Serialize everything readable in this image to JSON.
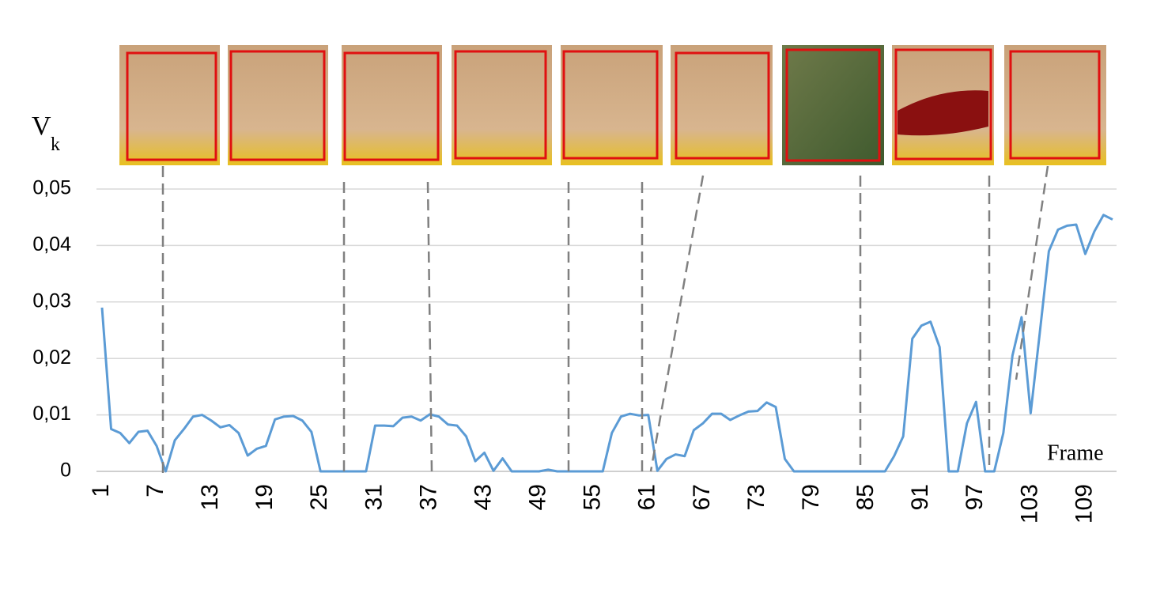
{
  "chart_data": {
    "type": "line",
    "ylabel": {
      "main": "V",
      "sub": "k"
    },
    "xlabel": "Frame",
    "color": "#5b9bd5",
    "grid": true,
    "xlim": [
      1,
      112
    ],
    "xticks": [
      1,
      7,
      13,
      19,
      25,
      31,
      37,
      43,
      49,
      55,
      61,
      67,
      73,
      79,
      85,
      91,
      97,
      103,
      109
    ],
    "ylim": [
      0,
      0.05
    ],
    "yticks": [
      0,
      {
        "value": 0.01,
        "label": "0,01"
      },
      {
        "value": 0.02,
        "label": "0,02"
      },
      {
        "value": 0.03,
        "label": "0,03"
      },
      {
        "value": 0.04,
        "label": "0,04"
      },
      {
        "value": 0.05,
        "label": "0,05"
      }
    ],
    "x": [
      1,
      2,
      3,
      4,
      5,
      6,
      7,
      8,
      9,
      10,
      11,
      12,
      13,
      14,
      15,
      16,
      17,
      18,
      19,
      20,
      21,
      22,
      23,
      24,
      25,
      26,
      27,
      28,
      29,
      30,
      31,
      32,
      33,
      34,
      35,
      36,
      37,
      38,
      39,
      40,
      41,
      42,
      43,
      44,
      45,
      46,
      47,
      48,
      49,
      50,
      51,
      52,
      53,
      54,
      55,
      56,
      57,
      58,
      59,
      60,
      61,
      62,
      63,
      64,
      65,
      66,
      67,
      68,
      69,
      70,
      71,
      72,
      73,
      74,
      75,
      76,
      77,
      78,
      79,
      80,
      81,
      82,
      83,
      84,
      85,
      86,
      87,
      88,
      89,
      90,
      91,
      92,
      93,
      94,
      95,
      96,
      97,
      98,
      99,
      100,
      101,
      102,
      103,
      104,
      105,
      106,
      107,
      108,
      109,
      110,
      111,
      112
    ],
    "values": [
      0.029,
      0.0075,
      0.0068,
      0.005,
      0.007,
      0.0072,
      0.0045,
      0,
      0.0055,
      0.0075,
      0.0097,
      0.01,
      0.009,
      0.0078,
      0.0082,
      0.0068,
      0.0028,
      0.004,
      0.0045,
      0.0092,
      0.0097,
      0.0098,
      0.009,
      0.007,
      0,
      0,
      0,
      0,
      0,
      0,
      0.0081,
      0.0081,
      0.008,
      0.0095,
      0.0097,
      0.009,
      0.0101,
      0.0097,
      0.0083,
      0.0081,
      0.0062,
      0.0018,
      0.0033,
      0.0001,
      0.0023,
      0,
      0,
      0,
      0,
      0.0003,
      0,
      0,
      0,
      0,
      0,
      0,
      0.0068,
      0.0097,
      0.0102,
      0.0099,
      0.01,
      0.0001,
      0.0022,
      0.003,
      0.0027,
      0.0073,
      0.0085,
      0.0102,
      0.0102,
      0.0091,
      0.0099,
      0.0106,
      0.0107,
      0.0122,
      0.0114,
      0.0022,
      0,
      0,
      0,
      0,
      0,
      0,
      0,
      0,
      0,
      0,
      0,
      0.0027,
      0.0062,
      0.0235,
      0.0258,
      0.0265,
      0.022,
      0,
      0,
      0.0085,
      0.0123,
      0,
      0,
      0.0068,
      0.0205,
      0.0273,
      0.0103,
      0.0245,
      0.039,
      0.0428,
      0.0435,
      0.0437,
      0.0385,
      0.0425,
      0.0454,
      0.0446
    ]
  }
}
